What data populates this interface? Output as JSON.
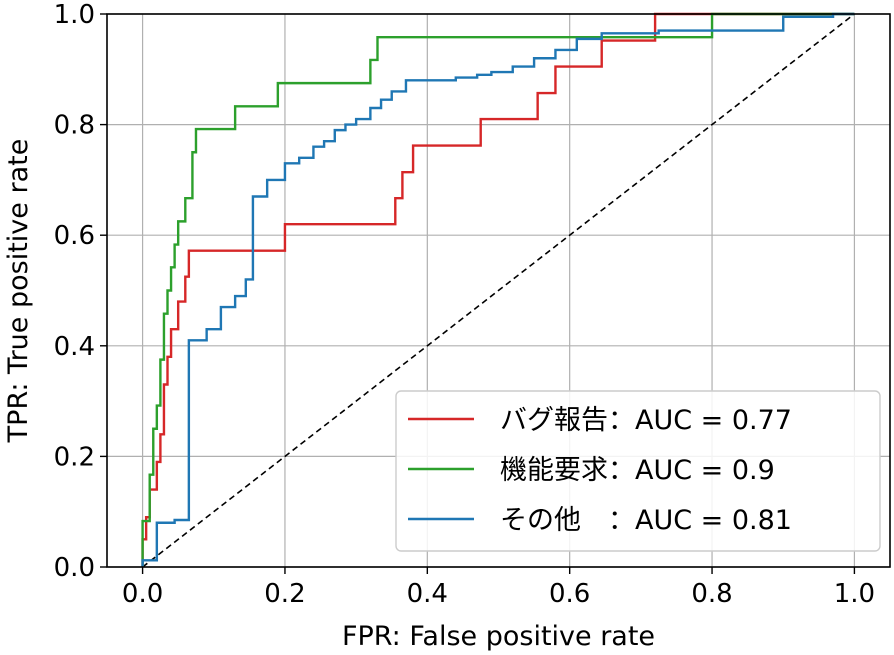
{
  "chart_data": {
    "type": "line",
    "xlabel": "FPR: False positive rate",
    "ylabel": "TPR: True positive rate",
    "xlim": [
      -0.05,
      1.05
    ],
    "ylim": [
      0.0,
      1.0
    ],
    "xticks": [
      "0.0",
      "0.2",
      "0.4",
      "0.6",
      "0.8",
      "1.0"
    ],
    "yticks": [
      "0.0",
      "0.2",
      "0.4",
      "0.6",
      "0.8",
      "1.0"
    ],
    "grid": true,
    "legend_position": "lower-right",
    "diagonal": {
      "x": [
        0,
        1
      ],
      "y": [
        0,
        1
      ],
      "style": "dashed",
      "color": "#000000"
    },
    "series": [
      {
        "name": "バグ報告：AUC = 0.77",
        "color": "#d62728",
        "x": [
          0.0,
          0.0,
          0.005,
          0.005,
          0.01,
          0.01,
          0.02,
          0.02,
          0.025,
          0.025,
          0.03,
          0.03,
          0.035,
          0.035,
          0.04,
          0.04,
          0.05,
          0.05,
          0.06,
          0.06,
          0.065,
          0.065,
          0.2,
          0.2,
          0.355,
          0.355,
          0.365,
          0.365,
          0.38,
          0.38,
          0.475,
          0.475,
          0.555,
          0.555,
          0.58,
          0.58,
          0.645,
          0.645,
          0.72,
          0.72,
          1.0
        ],
        "y": [
          0.0,
          0.05,
          0.05,
          0.09,
          0.09,
          0.14,
          0.14,
          0.19,
          0.19,
          0.24,
          0.24,
          0.33,
          0.33,
          0.38,
          0.38,
          0.43,
          0.43,
          0.48,
          0.48,
          0.525,
          0.525,
          0.572,
          0.572,
          0.62,
          0.62,
          0.667,
          0.667,
          0.714,
          0.714,
          0.762,
          0.762,
          0.81,
          0.81,
          0.857,
          0.857,
          0.905,
          0.905,
          0.952,
          0.952,
          1.0,
          1.0
        ]
      },
      {
        "name": "機能要求：AUC = 0.9",
        "color": "#2ca02c",
        "x": [
          0.0,
          0.0,
          0.01,
          0.01,
          0.015,
          0.015,
          0.02,
          0.02,
          0.025,
          0.025,
          0.03,
          0.03,
          0.035,
          0.035,
          0.04,
          0.04,
          0.045,
          0.045,
          0.05,
          0.05,
          0.06,
          0.06,
          0.07,
          0.07,
          0.075,
          0.075,
          0.09,
          0.09,
          0.13,
          0.13,
          0.19,
          0.19,
          0.32,
          0.32,
          0.33,
          0.33,
          0.8,
          0.8,
          1.0
        ],
        "y": [
          0.0,
          0.083,
          0.083,
          0.167,
          0.167,
          0.25,
          0.25,
          0.292,
          0.292,
          0.375,
          0.375,
          0.458,
          0.458,
          0.5,
          0.5,
          0.542,
          0.542,
          0.583,
          0.583,
          0.625,
          0.625,
          0.667,
          0.667,
          0.75,
          0.75,
          0.792,
          0.792,
          0.792,
          0.792,
          0.833,
          0.833,
          0.875,
          0.875,
          0.917,
          0.917,
          0.958,
          0.958,
          1.0,
          1.0
        ]
      },
      {
        "name": "その他　：AUC = 0.81",
        "color": "#1f77b4",
        "x": [
          0.0,
          0.0,
          0.02,
          0.02,
          0.045,
          0.045,
          0.065,
          0.065,
          0.09,
          0.09,
          0.11,
          0.11,
          0.13,
          0.13,
          0.145,
          0.145,
          0.155,
          0.155,
          0.175,
          0.175,
          0.2,
          0.2,
          0.22,
          0.22,
          0.24,
          0.24,
          0.255,
          0.255,
          0.27,
          0.27,
          0.285,
          0.285,
          0.3,
          0.3,
          0.32,
          0.32,
          0.335,
          0.335,
          0.35,
          0.35,
          0.37,
          0.37,
          0.44,
          0.44,
          0.47,
          0.47,
          0.49,
          0.49,
          0.52,
          0.52,
          0.55,
          0.55,
          0.58,
          0.58,
          0.61,
          0.61,
          0.645,
          0.645,
          0.725,
          0.725,
          0.9,
          0.9,
          0.97,
          0.97,
          1.0
        ],
        "y": [
          0.0,
          0.012,
          0.012,
          0.08,
          0.08,
          0.085,
          0.085,
          0.41,
          0.41,
          0.43,
          0.43,
          0.47,
          0.47,
          0.49,
          0.49,
          0.52,
          0.52,
          0.67,
          0.67,
          0.7,
          0.7,
          0.73,
          0.73,
          0.74,
          0.74,
          0.76,
          0.76,
          0.77,
          0.77,
          0.79,
          0.79,
          0.8,
          0.8,
          0.81,
          0.81,
          0.83,
          0.83,
          0.845,
          0.845,
          0.86,
          0.86,
          0.88,
          0.88,
          0.885,
          0.885,
          0.89,
          0.89,
          0.895,
          0.895,
          0.905,
          0.905,
          0.92,
          0.92,
          0.935,
          0.935,
          0.955,
          0.955,
          0.965,
          0.965,
          0.97,
          0.97,
          0.995,
          0.995,
          1.0,
          1.0
        ]
      }
    ]
  }
}
